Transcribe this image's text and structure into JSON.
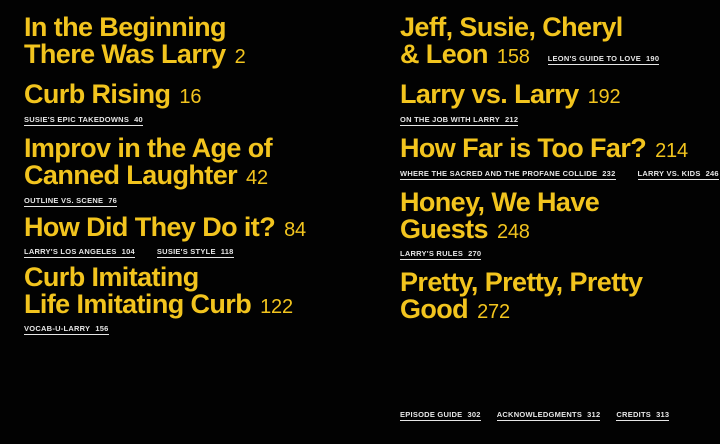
{
  "page": {
    "background": "#020202",
    "accent_yellow": "#F2C41E",
    "sub_text_color": "#E6E6E6"
  },
  "columns": {
    "left": [
      {
        "title": "In the Beginning\nThere Was Larry",
        "page": "2"
      },
      {
        "title": "Curb Rising",
        "page": "16",
        "subs": [
          {
            "label": "SUSIE'S EPIC TAKEDOWNS",
            "page": "40"
          }
        ]
      },
      {
        "title": "Improv in the Age of\nCanned Laughter",
        "page": "42",
        "subs": [
          {
            "label": "OUTLINE VS. SCENE",
            "page": "76"
          }
        ]
      },
      {
        "title": "How Did They Do it?",
        "page": "84",
        "subs": [
          {
            "label": "LARRY'S LOS ANGELES",
            "page": "104"
          },
          {
            "label": "SUSIE'S STYLE",
            "page": "118"
          }
        ]
      },
      {
        "title": "Curb Imitating\nLife Imitating Curb",
        "page": "122",
        "subs": [
          {
            "label": "VOCAB-U-LARRY",
            "page": "156"
          }
        ]
      }
    ],
    "right": [
      {
        "title": "Jeff, Susie, Cheryl\n& Leon",
        "page": "158",
        "inline_sub": {
          "label": "LEON'S GUIDE TO LOVE",
          "page": "190"
        }
      },
      {
        "title": "Larry vs. Larry",
        "page": "192",
        "subs": [
          {
            "label": "ON THE JOB WITH LARRY",
            "page": "212"
          }
        ]
      },
      {
        "title": "How Far is Too Far?",
        "page": "214",
        "subs": [
          {
            "label": "WHERE THE SACRED AND THE PROFANE COLLIDE",
            "page": "232"
          },
          {
            "label": "LARRY VS. KIDS",
            "page": "246"
          }
        ]
      },
      {
        "title": "Honey, We Have\nGuests",
        "page": "248",
        "subs": [
          {
            "label": "LARRY'S RULES",
            "page": "270"
          }
        ]
      },
      {
        "title": "Pretty, Pretty, Pretty\nGood",
        "page": "272"
      }
    ]
  },
  "footer": [
    {
      "label": "EPISODE GUIDE",
      "page": "302"
    },
    {
      "label": "ACKNOWLEDGMENTS",
      "page": "312"
    },
    {
      "label": "CREDITS",
      "page": "313"
    }
  ]
}
